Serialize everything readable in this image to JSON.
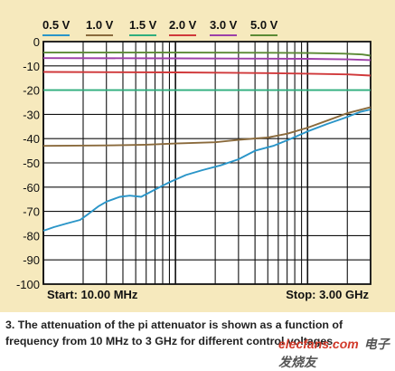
{
  "chart_data": {
    "type": "line",
    "title": "",
    "xlabel": "",
    "ylabel": "",
    "x_scale": "log",
    "x_range_hz": [
      10000000,
      3000000000
    ],
    "ylim": [
      -100,
      0
    ],
    "yticks": [
      0,
      -10,
      -20,
      -30,
      -40,
      -50,
      -60,
      -70,
      -80,
      -90,
      -100
    ],
    "grid": true,
    "legend_position": "top",
    "start_label": "Start: 10.00 MHz",
    "stop_label": "Stop: 3.00 GHz",
    "series": [
      {
        "name": "0.5 V",
        "color": "#2a95c8",
        "x": [
          10000000,
          12000000,
          15000000,
          19000000,
          22000000,
          26000000,
          30000000,
          38000000,
          45000000,
          55000000,
          70000000,
          90000000,
          120000000,
          160000000,
          220000000,
          300000000,
          400000000,
          550000000,
          750000000,
          1000000000,
          1400000000,
          1900000000,
          2500000000,
          3000000000
        ],
        "y": [
          -78,
          -76.5,
          -75,
          -73.5,
          -71,
          -68,
          -66,
          -64,
          -63.5,
          -64,
          -61,
          -58,
          -55,
          -53,
          -51,
          -48.5,
          -45,
          -43,
          -40,
          -37,
          -34,
          -31.5,
          -29,
          -28
        ]
      },
      {
        "name": "1.0 V",
        "color": "#8a6a3c",
        "x": [
          10000000,
          30000000,
          60000000,
          100000000,
          200000000,
          300000000,
          500000000,
          700000000,
          1000000000,
          1500000000,
          2000000000,
          3000000000
        ],
        "y": [
          -43,
          -42.8,
          -42.5,
          -42,
          -41.5,
          -40.5,
          -39.5,
          -38,
          -35.5,
          -32,
          -29.5,
          -27
        ]
      },
      {
        "name": "1.5 V",
        "color": "#2fae7d",
        "x": [
          10000000,
          100000000,
          500000000,
          1000000000,
          2000000000,
          3000000000
        ],
        "y": [
          -20,
          -20,
          -20,
          -20,
          -20,
          -20
        ]
      },
      {
        "name": "2.0 V",
        "color": "#d0383a",
        "x": [
          10000000,
          100000000,
          500000000,
          1000000000,
          2000000000,
          3000000000
        ],
        "y": [
          -12.5,
          -12.7,
          -13,
          -13.2,
          -13.5,
          -14
        ]
      },
      {
        "name": "3.0 V",
        "color": "#9c3fa8",
        "x": [
          10000000,
          100000000,
          500000000,
          1000000000,
          2000000000,
          3000000000
        ],
        "y": [
          -6.8,
          -6.9,
          -7,
          -7.1,
          -7.3,
          -7.6
        ]
      },
      {
        "name": "5.0 V",
        "color": "#5b8a35",
        "x": [
          10000000,
          100000000,
          500000000,
          1000000000,
          2000000000,
          2600000000,
          3000000000
        ],
        "y": [
          -4.5,
          -4.5,
          -4.6,
          -4.7,
          -5,
          -5.3,
          -5.8
        ]
      }
    ]
  },
  "caption": "3. The attenuation of the pi attenuator is shown as a function of frequency from 10 MHz to 3 GHz for different control voltages.",
  "watermark": {
    "brand": "elecfans.com",
    "cn": "电子发烧友"
  }
}
